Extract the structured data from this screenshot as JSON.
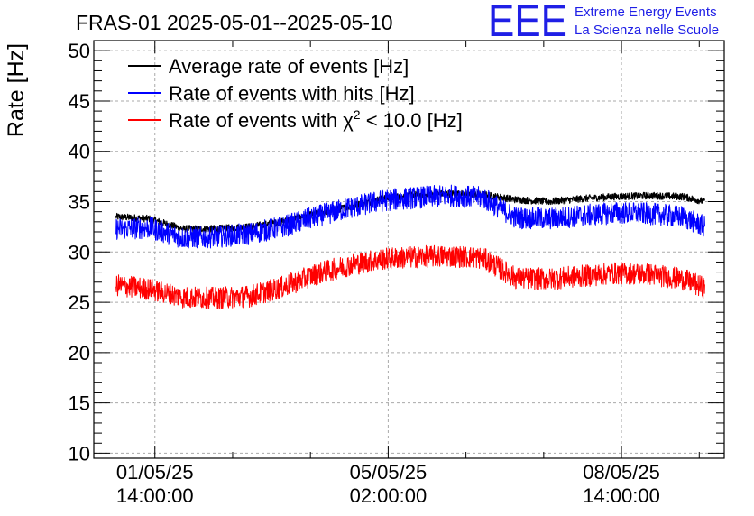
{
  "header": {
    "title": "FRAS-01 2025-05-01--2025-05-10",
    "logo_mark": "EEE",
    "logo_line1": "Extreme Energy Events",
    "logo_line2": "La Scienza nelle Scuole"
  },
  "colors": {
    "average": "#000000",
    "hits": "#0000ff",
    "chi2": "#ff0000",
    "grid": "#aaaaaa",
    "logo": "#1f1fe6"
  },
  "chart_data": {
    "type": "line",
    "ylabel": "Rate [Hz]",
    "xlabel": "",
    "ylim": [
      9.5,
      51
    ],
    "yticks": [
      10,
      15,
      20,
      25,
      30,
      35,
      40,
      45,
      50
    ],
    "xlim": [
      "2025-04-30 16:00",
      "2025-05-10 03:00"
    ],
    "xticks": [
      {
        "at": "2025-05-01 14:00",
        "line1": "01/05/25",
        "line2": "14:00:00"
      },
      {
        "at": "2025-05-05 02:00",
        "line1": "05/05/25",
        "line2": "02:00:00"
      },
      {
        "at": "2025-05-08 14:00",
        "line1": "08/05/25",
        "line2": "14:00:00"
      }
    ],
    "grid": true,
    "legend_position": "top-left",
    "x": [
      "2025-05-01 00:00",
      "2025-05-01 12:00",
      "2025-05-02 00:00",
      "2025-05-02 12:00",
      "2025-05-03 00:00",
      "2025-05-03 12:00",
      "2025-05-04 00:00",
      "2025-05-04 12:00",
      "2025-05-05 00:00",
      "2025-05-05 12:00",
      "2025-05-06 00:00",
      "2025-05-06 12:00",
      "2025-05-07 00:00",
      "2025-05-07 12:00",
      "2025-05-08 00:00",
      "2025-05-08 12:00",
      "2025-05-09 00:00",
      "2025-05-09 12:00",
      "2025-05-09 20:00"
    ],
    "series": [
      {
        "name": "Average rate of events [Hz]",
        "color": "#000000",
        "noise": 0.35,
        "values": [
          33.5,
          33.3,
          32.3,
          32.3,
          32.5,
          33.0,
          33.8,
          34.5,
          35.3,
          35.7,
          35.8,
          35.7,
          35.2,
          35.0,
          35.3,
          35.5,
          35.6,
          35.5,
          35.0
        ]
      },
      {
        "name": "Rate of events with hits [Hz]",
        "color": "#0000ff",
        "noise": 1.1,
        "values": [
          32.3,
          32.4,
          31.4,
          31.5,
          31.8,
          32.5,
          33.5,
          34.4,
          35.1,
          35.4,
          35.6,
          35.4,
          33.4,
          33.3,
          33.6,
          33.9,
          33.8,
          33.5,
          32.5
        ]
      },
      {
        "name": "Rate of events with χ² < 10.0 [Hz]",
        "color": "#ff0000",
        "noise": 1.1,
        "values": [
          26.7,
          26.3,
          25.5,
          25.4,
          25.6,
          26.5,
          27.8,
          28.7,
          29.3,
          29.5,
          29.6,
          29.4,
          27.4,
          27.3,
          27.6,
          27.9,
          27.8,
          27.3,
          26.4
        ]
      }
    ],
    "legend_entries": [
      {
        "label": "Average rate of events [Hz]",
        "color": "#000000"
      },
      {
        "label": "Rate of events with hits [Hz]",
        "color": "#0000ff"
      },
      {
        "label_prefix": "Rate of events with ",
        "label_symbol": "χ",
        "label_sup": "2",
        "label_suffix": " < 10.0 [Hz]",
        "color": "#ff0000"
      }
    ]
  }
}
